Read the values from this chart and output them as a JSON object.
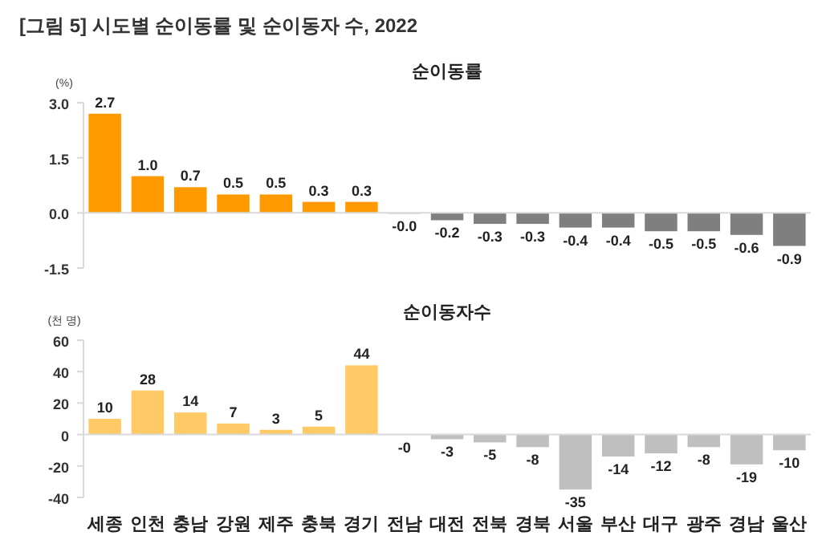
{
  "chart_data": [
    {
      "type": "bar",
      "title": "[그림 5] 시도별 순이동률 및 순이동자 수, 2022",
      "subtitle": "순이동률",
      "ylabel": "(%)",
      "categories": [
        null,
        null,
        null,
        null,
        null,
        null,
        null,
        null,
        null,
        null,
        null,
        null,
        null,
        null,
        null,
        null,
        null
      ],
      "values": [
        2.7,
        1.0,
        0.7,
        0.5,
        0.5,
        0.3,
        0.3,
        -0.02,
        -0.2,
        -0.3,
        -0.3,
        -0.4,
        -0.4,
        -0.5,
        -0.5,
        -0.6,
        -0.9
      ],
      "value_labels": [
        "2.7",
        "1.0",
        "0.7",
        "0.5",
        "0.5",
        "0.3",
        "0.3",
        "-0.0",
        "-0.2",
        "-0.3",
        "-0.3",
        "-0.4",
        "-0.4",
        "-0.5",
        "-0.5",
        "-0.6",
        "-0.9"
      ],
      "colors": [
        "#ff9900",
        "#ff9900",
        "#ff9900",
        "#ff9900",
        "#ff9900",
        "#ff9900",
        "#ff9900",
        "#7f7f7f",
        "#7f7f7f",
        "#7f7f7f",
        "#7f7f7f",
        "#7f7f7f",
        "#7f7f7f",
        "#7f7f7f",
        "#7f7f7f",
        "#7f7f7f",
        "#7f7f7f"
      ],
      "ylim": [
        -1.5,
        3.0
      ],
      "yticks": [
        {
          "value": 3,
          "label": "3.0"
        },
        1.5,
        {
          "value": 0,
          "label": "0.0"
        },
        -1.5
      ],
      "tick_labels": "y"
    },
    {
      "type": "bar",
      "title": "순이동자수",
      "ylabel": "(천 명)",
      "categories": [
        "세종",
        "인천",
        "충남",
        "강원",
        "제주",
        "충북",
        "경기",
        "전남",
        "대전",
        "전북",
        "경북",
        "서울",
        "부산",
        "대구",
        "광주",
        "경남",
        "울산"
      ],
      "values": [
        10,
        28,
        14,
        7,
        3,
        5,
        44,
        -0.3,
        -3,
        -5,
        -8,
        -35,
        -14,
        -12,
        -8,
        -19,
        -10
      ],
      "value_labels": [
        "10",
        "28",
        "14",
        "7",
        "3",
        "5",
        "44",
        "-0",
        "-3",
        "-5",
        "-8",
        "-35",
        "-14",
        "-12",
        "-8",
        "-19",
        "-10"
      ],
      "colors": [
        "#ffc966",
        "#ffc966",
        "#ffc966",
        "#ffc966",
        "#ffc966",
        "#ffc966",
        "#ffc966",
        "#bfbfbf",
        "#bfbfbf",
        "#bfbfbf",
        "#bfbfbf",
        "#bfbfbf",
        "#bfbfbf",
        "#bfbfbf",
        "#bfbfbf",
        "#bfbfbf",
        "#bfbfbf"
      ],
      "ylim": [
        -40,
        60
      ],
      "yticks": [
        60,
        40,
        20,
        0,
        -20,
        -40
      ]
    }
  ]
}
